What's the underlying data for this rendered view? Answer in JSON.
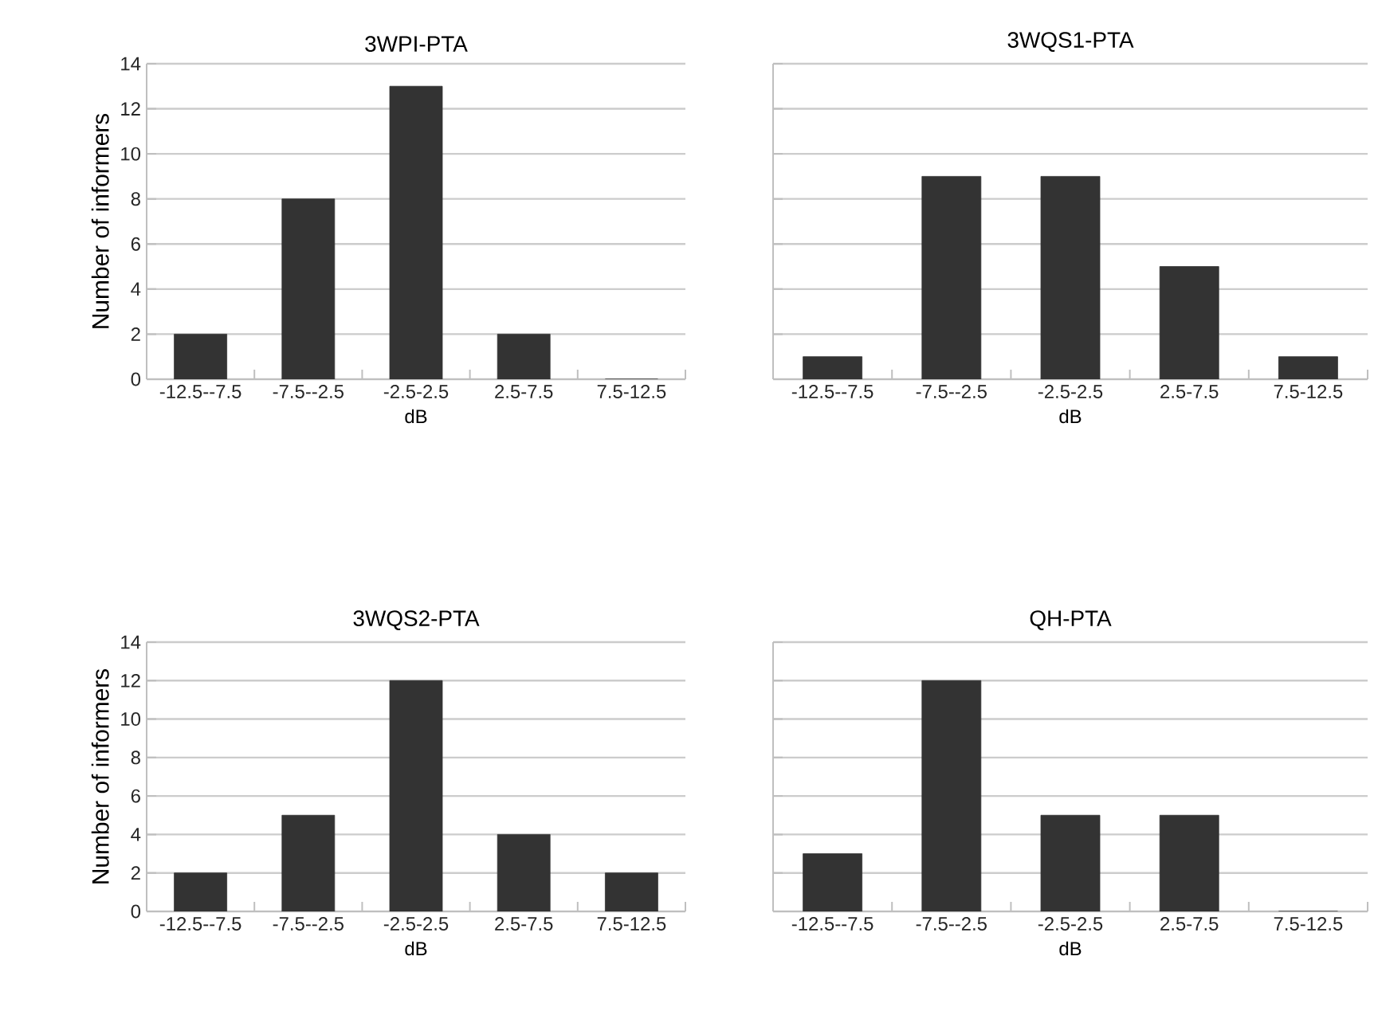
{
  "chart_data": [
    {
      "type": "bar",
      "title": "3WPI-PTA",
      "xlabel": "dB",
      "ylabel": "Number of informers",
      "categories": [
        "-12.5--7.5",
        "-7.5--2.5",
        "-2.5-2.5",
        "2.5-7.5",
        "7.5-12.5"
      ],
      "values": [
        2,
        8,
        13,
        2,
        0
      ],
      "color": "#333333",
      "ylim": [
        0,
        14
      ],
      "yticks": [
        0,
        2,
        4,
        6,
        8,
        10,
        12,
        14
      ],
      "grid": "y"
    },
    {
      "type": "bar",
      "title": "3WQS1-PTA",
      "xlabel": "dB",
      "categories": [
        "-12.5--7.5",
        "-7.5--2.5",
        "-2.5-2.5",
        "2.5-7.5",
        "7.5-12.5"
      ],
      "values": [
        1,
        9,
        9,
        5,
        1
      ],
      "color": "#333333",
      "ylim": [
        0,
        14
      ],
      "yticks": [
        0,
        2,
        4,
        6,
        8,
        10,
        12,
        14
      ],
      "grid": "y",
      "tick_labels": "x"
    },
    {
      "type": "bar",
      "title": "3WQS2-PTA",
      "xlabel": "dB",
      "ylabel": "Number of informers",
      "categories": [
        "-12.5--7.5",
        "-7.5--2.5",
        "-2.5-2.5",
        "2.5-7.5",
        "7.5-12.5"
      ],
      "values": [
        2,
        5,
        12,
        4,
        2
      ],
      "color": "#333333",
      "ylim": [
        0,
        14
      ],
      "yticks": [
        0,
        2,
        4,
        6,
        8,
        10,
        12,
        14
      ],
      "grid": "y"
    },
    {
      "type": "bar",
      "title": "QH-PTA",
      "xlabel": "dB",
      "categories": [
        "-12.5--7.5",
        "-7.5--2.5",
        "-2.5-2.5",
        "2.5-7.5",
        "7.5-12.5"
      ],
      "values": [
        3,
        12,
        5,
        5,
        0
      ],
      "color": "#333333",
      "ylim": [
        0,
        14
      ],
      "yticks": [
        0,
        2,
        4,
        6,
        8,
        10,
        12,
        14
      ],
      "grid": "y",
      "tick_labels": "x"
    }
  ]
}
